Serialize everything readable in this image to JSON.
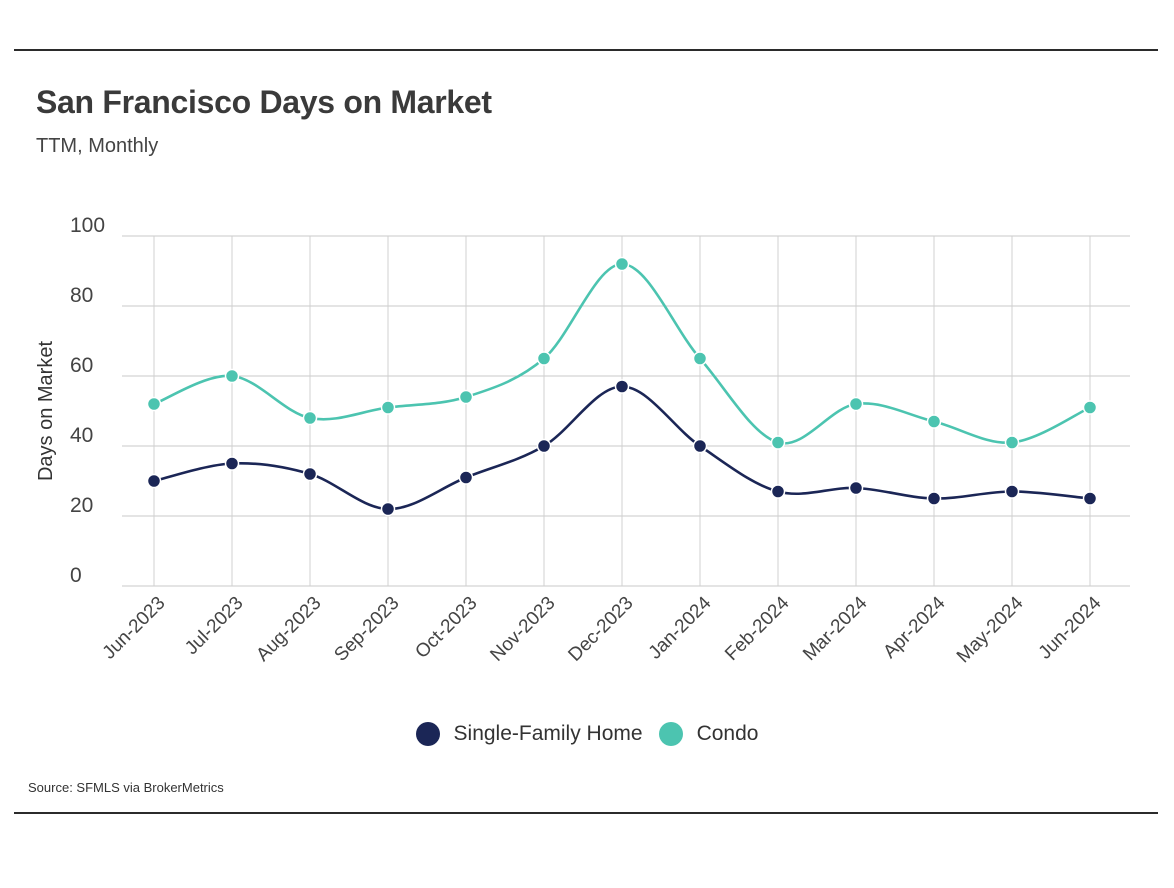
{
  "header": {
    "title": "San Francisco Days on Market",
    "subtitle": "TTM, Monthly"
  },
  "footer": {
    "source": "Source:  SFMLS via BrokerMetrics"
  },
  "chart_data": {
    "type": "line",
    "title": "San Francisco Days on Market",
    "subtitle": "TTM, Monthly",
    "xlabel": "",
    "ylabel": "Days on Market",
    "ylim": [
      0,
      100
    ],
    "yticks": [
      0,
      20,
      40,
      60,
      80,
      100
    ],
    "grid": true,
    "legend_position": "bottom",
    "categories": [
      "Jun-2023",
      "Jul-2023",
      "Aug-2023",
      "Sep-2023",
      "Oct-2023",
      "Nov-2023",
      "Dec-2023",
      "Jan-2024",
      "Feb-2024",
      "Mar-2024",
      "Apr-2024",
      "May-2024",
      "Jun-2024"
    ],
    "series": [
      {
        "name": "Single-Family Home",
        "color": "#1b2656",
        "values": [
          30,
          35,
          32,
          22,
          31,
          40,
          57,
          40,
          27,
          28,
          25,
          27,
          25
        ]
      },
      {
        "name": "Condo",
        "color": "#4cc4b0",
        "values": [
          52,
          60,
          48,
          51,
          54,
          65,
          92,
          65,
          41,
          52,
          47,
          41,
          51
        ]
      }
    ]
  }
}
